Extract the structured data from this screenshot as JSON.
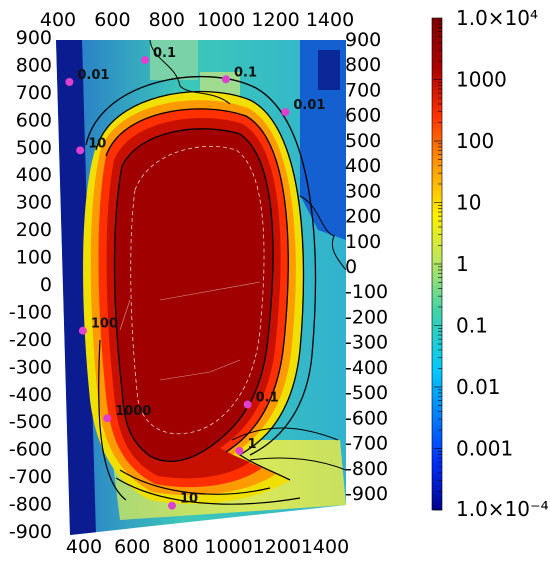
{
  "chart_data": {
    "type": "heatmap",
    "x_axis": {
      "range": [
        400,
        1400
      ],
      "top_ticks": [
        "400",
        "600",
        "800",
        "1000",
        "1200",
        "1400"
      ],
      "bottom_ticks": [
        "400",
        "600",
        "800",
        "1000",
        "1200",
        "1400"
      ]
    },
    "y_axis": {
      "range": [
        -900,
        900
      ],
      "left_ticks": [
        "900",
        "800",
        "700",
        "600",
        "500",
        "400",
        "300",
        "200",
        "100",
        "0",
        "-100",
        "-200",
        "-300",
        "-400",
        "-500",
        "-600",
        "-700",
        "-800",
        "-900"
      ],
      "right_ticks": [
        "900",
        "800",
        "700",
        "600",
        "500",
        "400",
        "300",
        "200",
        "100",
        "0",
        "-100",
        "-200",
        "-300",
        "-400",
        "-500",
        "-600",
        "-700",
        "-800",
        "-900"
      ]
    },
    "colorbar": {
      "scale": "log",
      "range": [
        0.0001,
        10000
      ],
      "max_label": "1.0×10⁴",
      "min_label": "1.0×10⁻⁴",
      "tick_labels": [
        "1000",
        "100",
        "10",
        "1",
        "0.1",
        "0.01",
        "0.001"
      ],
      "colormap": [
        "#00008c",
        "#0032ff",
        "#00c8ff",
        "#3cd2aa",
        "#b4e664",
        "#fff000",
        "#ff9b00",
        "#ff3200",
        "#aa0000",
        "#800000"
      ]
    },
    "contour_labels": [
      {
        "text": "0.01",
        "x": 420,
        "y": 750
      },
      {
        "text": "0.1",
        "x": 700,
        "y": 830
      },
      {
        "text": "0.1",
        "x": 1000,
        "y": 760
      },
      {
        "text": "0.01",
        "x": 1220,
        "y": 640
      },
      {
        "text": "10",
        "x": 460,
        "y": 500
      },
      {
        "text": "100",
        "x": 470,
        "y": -160
      },
      {
        "text": "1000",
        "x": 560,
        "y": -480
      },
      {
        "text": "0.1",
        "x": 1080,
        "y": -430
      },
      {
        "text": "1",
        "x": 1050,
        "y": -600
      },
      {
        "text": "10",
        "x": 800,
        "y": -800
      }
    ],
    "marker_color": "#e040d0"
  }
}
